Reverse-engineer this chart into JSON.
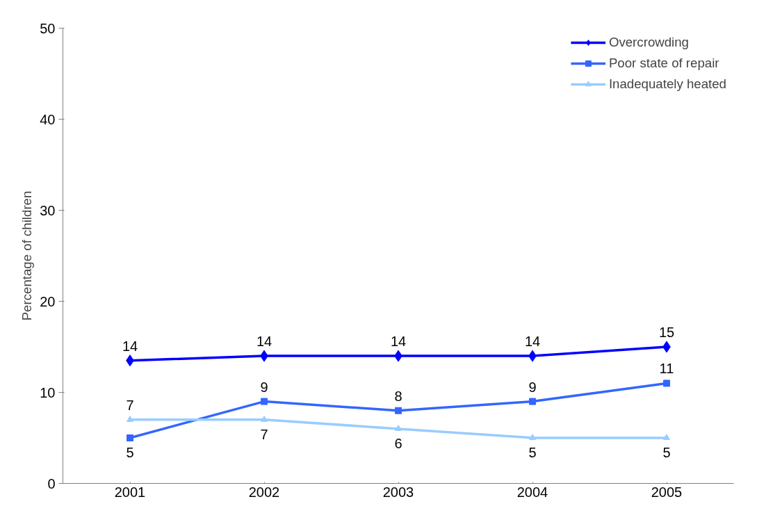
{
  "chart_data": {
    "type": "line",
    "ylabel": "Percentage of children",
    "categories": [
      "2001",
      "2002",
      "2003",
      "2004",
      "2005"
    ],
    "ylim": [
      0,
      50
    ],
    "yticks": [
      0,
      10,
      20,
      30,
      40,
      50
    ],
    "grid": false,
    "legend": "top right",
    "line_style": "solid",
    "series": [
      {
        "name": "Overcrowding",
        "color": "#0000ff",
        "marker": "diamond",
        "values": [
          13.5,
          14,
          14,
          14,
          15
        ],
        "value_labels": [
          "14",
          "14",
          "14",
          "14",
          "15"
        ]
      },
      {
        "name": "Poor state of repair",
        "color": "#3366ff",
        "marker": "square",
        "values": [
          5,
          9,
          8,
          9,
          11
        ],
        "value_labels": [
          "5",
          "9",
          "8",
          "9",
          "11"
        ]
      },
      {
        "name": "Inadequately heated",
        "color": "#99ccff",
        "marker": "triangle",
        "values": [
          7,
          7,
          6,
          5,
          5
        ],
        "value_labels": [
          "7",
          "7",
          "6",
          "5",
          "5"
        ]
      }
    ]
  }
}
